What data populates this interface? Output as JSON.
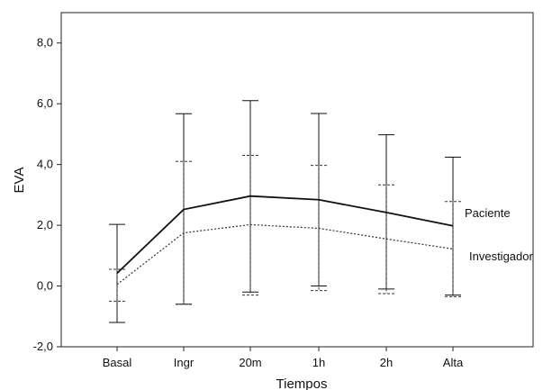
{
  "chart_data": {
    "type": "line",
    "xlabel": "Tiempos",
    "ylabel": "EVA",
    "categories": [
      "Basal",
      "Ingr",
      "20m",
      "1h",
      "2h",
      "Alta"
    ],
    "ylim": [
      -2.0,
      9.0
    ],
    "yticks": [
      "-2,0",
      "0,0",
      "2,0",
      "4,0",
      "6,0",
      "8,0"
    ],
    "ytick_values": [
      -2,
      0,
      2,
      4,
      6,
      8
    ],
    "grid": false,
    "legend_placement": "right",
    "series": [
      {
        "name": "Paciente",
        "style": "solid",
        "color": "#111111",
        "values": [
          0.42,
          2.52,
          2.96,
          2.84,
          2.42,
          1.98
        ],
        "err_low": [
          -1.2,
          -0.6,
          -0.2,
          0.0,
          -0.1,
          -0.3
        ],
        "err_high": [
          2.03,
          5.67,
          6.1,
          5.68,
          4.98,
          4.24
        ]
      },
      {
        "name": "Investigador",
        "style": "dotted",
        "color": "#333333",
        "values": [
          0.05,
          1.75,
          2.02,
          1.9,
          1.55,
          1.22
        ],
        "err_low": [
          -0.5,
          -0.6,
          -0.3,
          -0.15,
          -0.25,
          -0.35
        ],
        "err_high": [
          0.55,
          4.1,
          4.3,
          3.97,
          3.33,
          2.78
        ]
      }
    ]
  }
}
